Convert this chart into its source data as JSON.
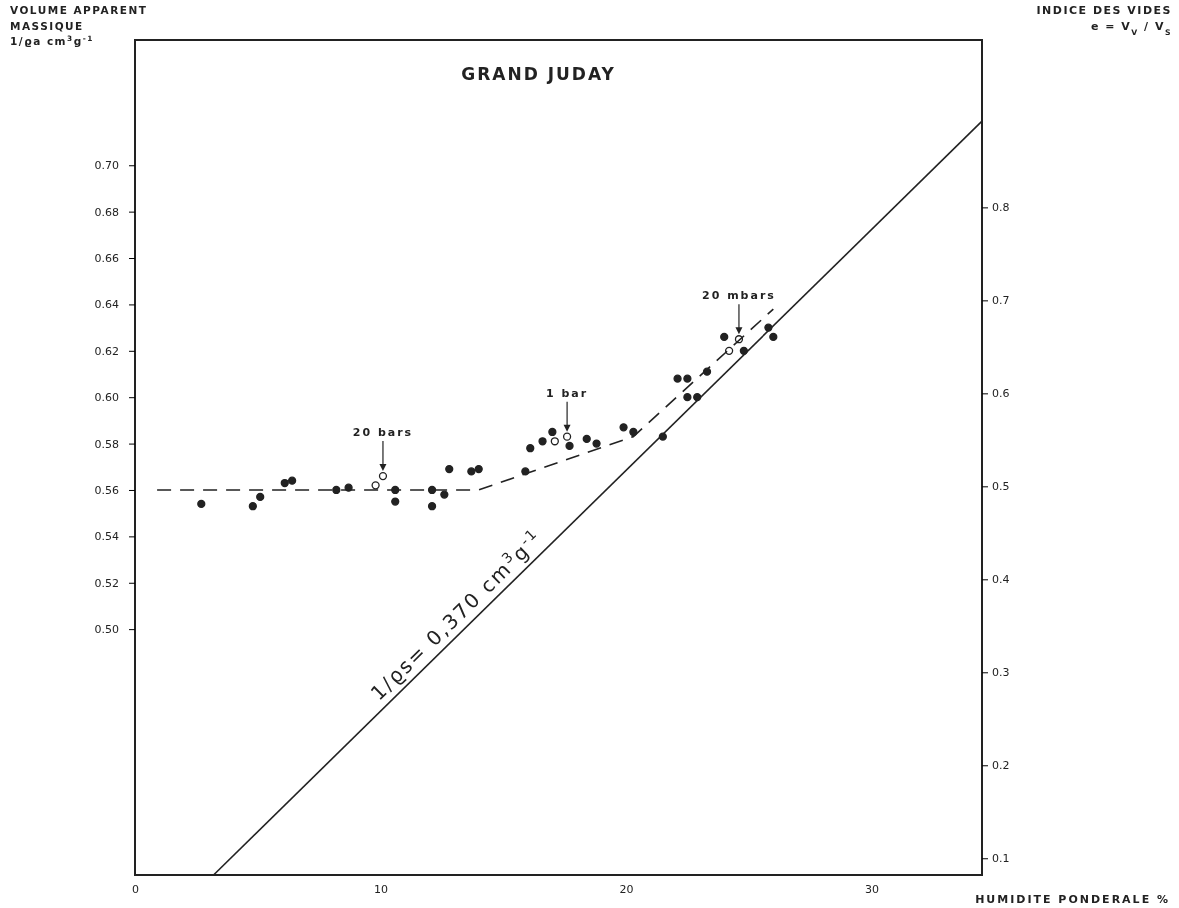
{
  "chart_data": {
    "type": "scatter",
    "title": "GRAND JUDAY",
    "xlabel": "HUMIDITE PONDERALE %",
    "ylabel": "VOLUME APPARENT\nMASSIQUE\n1/ϱa cm$^{3}$g$^{-1}$",
    "y2label": "INDICE DES VIDES\ne = V$_{V}$ / V$_{S}$",
    "xlim": [
      0,
      34.5
    ],
    "xticks": [
      0,
      10,
      20,
      30
    ],
    "ylim": [
      0.394,
      0.754
    ],
    "yticks": [
      {
        "value": 0.5,
        "label": "0.50"
      },
      {
        "value": 0.52,
        "label": "0.52"
      },
      {
        "value": 0.54,
        "label": "0.54"
      },
      {
        "value": 0.56,
        "label": "0.56"
      },
      {
        "value": 0.58,
        "label": "0.58"
      },
      {
        "value": 0.6,
        "label": "0.60"
      },
      {
        "value": 0.62,
        "label": "0.62"
      },
      {
        "value": 0.64,
        "label": "0.64"
      },
      {
        "value": 0.66,
        "label": "0.66"
      },
      {
        "value": 0.68,
        "label": "0.68"
      },
      {
        "value": 0.7,
        "label": "0.70"
      }
    ],
    "y2lim": [
      0.082,
      0.98
    ],
    "y2ticks": [
      0.1,
      0.2,
      0.3,
      0.4,
      0.5,
      0.6,
      0.7,
      0.8
    ],
    "grid": false,
    "series": [
      {
        "marker": "circle",
        "color": "#222222",
        "x": [
          2.7,
          4.8,
          5.1,
          6.1,
          6.4,
          8.2,
          8.7,
          10.6,
          10.6,
          12.1,
          12.1,
          12.6,
          12.8,
          13.7,
          14.0,
          15.9,
          16.1,
          16.6,
          17.0,
          17.7,
          18.4,
          18.8,
          19.9,
          20.3,
          21.5,
          22.1,
          22.5,
          22.5,
          22.9,
          23.3,
          24.0,
          24.8,
          25.8,
          26.0
        ],
        "values": [
          0.554,
          0.553,
          0.557,
          0.563,
          0.564,
          0.56,
          0.561,
          0.56,
          0.555,
          0.56,
          0.553,
          0.558,
          0.569,
          0.568,
          0.569,
          0.568,
          0.578,
          0.581,
          0.585,
          0.579,
          0.582,
          0.58,
          0.587,
          0.585,
          0.583,
          0.608,
          0.608,
          0.6,
          0.6,
          0.611,
          0.626,
          0.62,
          0.63,
          0.626
        ]
      },
      {
        "marker": "circle",
        "color": "#ffffff",
        "x": [
          9.8,
          10.1,
          17.1,
          17.6,
          24.2,
          24.6
        ],
        "values": [
          0.562,
          0.566,
          0.581,
          0.583,
          0.62,
          0.625
        ]
      },
      {
        "type": "line",
        "marker": "none",
        "line_style": "dashed",
        "color": "#222222",
        "x": [
          0.9,
          14.0,
          20.3,
          26.0
        ],
        "values": [
          0.56,
          0.56,
          0.583,
          0.638
        ]
      },
      {
        "type": "line",
        "marker": "none",
        "line_style": "solid",
        "color": "#222222",
        "x": [
          3.2,
          34.5
        ],
        "values": [
          0.394,
          0.719
        ]
      }
    ],
    "annotations": [
      {
        "text": "20 bars",
        "x": 10.1,
        "y": 0.566
      },
      {
        "text": "1 bar",
        "x": 17.6,
        "y": 0.583
      },
      {
        "text": "20 mbars",
        "x": 24.6,
        "y": 0.625
      },
      "1/ϱs= 0,370 cm$^{3}$g$^{-1}$"
    ]
  }
}
